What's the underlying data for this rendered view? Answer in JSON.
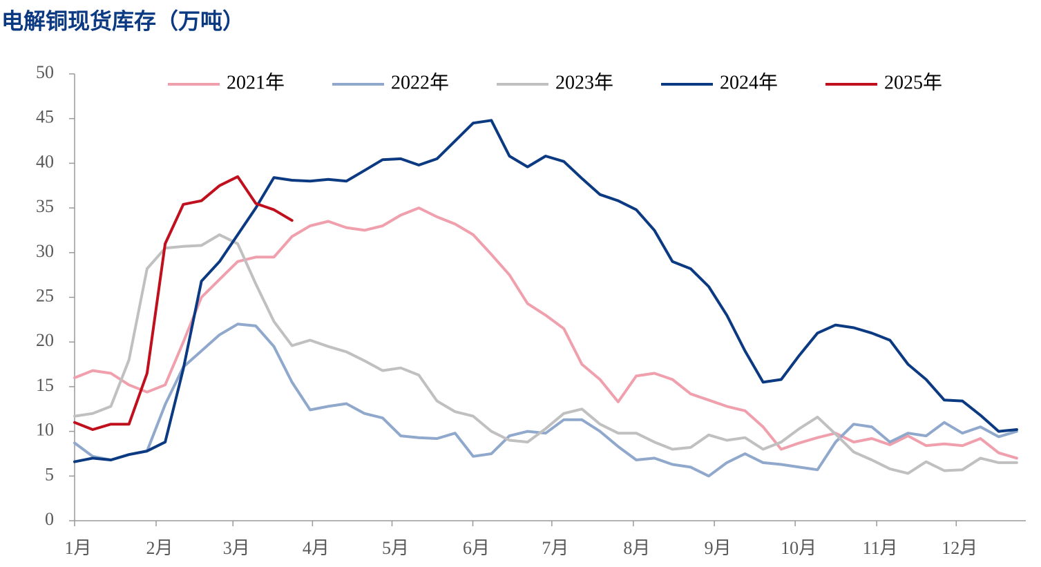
{
  "chart_data": {
    "type": "line",
    "title": "电解铜现货库存（万吨）",
    "x": [
      0,
      1,
      2,
      3,
      4,
      5,
      6,
      7,
      8,
      9,
      10,
      11,
      12,
      13,
      14,
      15,
      16,
      17,
      18,
      19,
      20,
      21,
      22,
      23,
      24,
      25,
      26,
      27,
      28,
      29,
      30,
      31,
      32,
      33,
      34,
      35,
      36,
      37,
      38,
      39,
      40,
      41,
      42,
      43,
      44,
      45,
      46,
      47,
      48,
      49,
      50,
      51,
      52
    ],
    "xlim": [
      0,
      52.5
    ],
    "xticks": [
      {
        "value": 0,
        "label": "1月"
      },
      {
        "value": 4.5,
        "label": "2月"
      },
      {
        "value": 8.74,
        "label": "3月"
      },
      {
        "value": 13.13,
        "label": "4月"
      },
      {
        "value": 17.52,
        "label": "5月"
      },
      {
        "value": 21.98,
        "label": "6月"
      },
      {
        "value": 26.34,
        "label": "7月"
      },
      {
        "value": 30.84,
        "label": "8月"
      },
      {
        "value": 35.31,
        "label": "9月"
      },
      {
        "value": 39.77,
        "label": "10月"
      },
      {
        "value": 44.27,
        "label": "11月"
      },
      {
        "value": 48.66,
        "label": "12月"
      }
    ],
    "ylim": [
      0,
      50
    ],
    "yticks": [
      0,
      5,
      10,
      15,
      20,
      25,
      30,
      35,
      40,
      45,
      50
    ],
    "legend": "top",
    "series": [
      {
        "name": "2021年",
        "color": "#f0a0ad",
        "values": [
          16,
          16.8,
          16.5,
          15.2,
          14.4,
          15.2,
          20,
          25,
          27,
          29,
          29.5,
          29.5,
          31.8,
          33,
          33.5,
          32.8,
          32.5,
          33,
          34.2,
          35,
          34,
          33.2,
          32,
          29.8,
          27.5,
          24.3,
          23,
          21.5,
          17.5,
          15.8,
          13.3,
          16.2,
          16.5,
          15.8,
          14.2,
          13.5,
          12.8,
          12.3,
          10.5,
          8,
          8.7,
          9.3,
          9.8,
          8.8,
          9.2,
          8.5,
          9.5,
          8.4,
          8.6,
          8.4,
          9.2,
          7.6,
          7
        ]
      },
      {
        "name": "2022年",
        "color": "#8fa8cc",
        "values": [
          8.7,
          7.2,
          6.8,
          7.4,
          7.8,
          13,
          17.2,
          19,
          20.8,
          22,
          21.8,
          19.5,
          15.5,
          12.4,
          12.8,
          13.1,
          12,
          11.5,
          9.5,
          9.3,
          9.2,
          9.8,
          7.2,
          7.5,
          9.5,
          10,
          9.8,
          11.3,
          11.3,
          10,
          8.3,
          6.8,
          7,
          6.3,
          6,
          5,
          6.5,
          7.5,
          6.5,
          6.3,
          6,
          5.7,
          8.8,
          10.8,
          10.5,
          8.8,
          9.8,
          9.5,
          11,
          9.8,
          10.5,
          9.4,
          10
        ]
      },
      {
        "name": "2023年",
        "color": "#c0c0c0",
        "values": [
          11.7,
          12,
          12.8,
          18,
          28.2,
          30.5,
          30.7,
          30.8,
          32,
          31,
          26.5,
          22.3,
          19.6,
          20.2,
          19.5,
          18.9,
          17.9,
          16.8,
          17.1,
          16.3,
          13.4,
          12.2,
          11.7,
          10,
          9,
          8.8,
          10.3,
          12,
          12.5,
          10.8,
          9.8,
          9.8,
          8.8,
          8,
          8.2,
          9.6,
          9,
          9.3,
          8,
          8.8,
          10.3,
          11.6,
          9.7,
          7.7,
          6.8,
          5.8,
          5.3,
          6.6,
          5.6,
          5.7,
          7,
          6.5,
          6.5
        ]
      },
      {
        "name": "2024年",
        "color": "#0b3a82",
        "values": [
          6.6,
          7,
          6.8,
          7.4,
          7.8,
          8.8,
          17,
          26.8,
          29,
          32,
          35,
          38.4,
          38.1,
          38,
          38.2,
          38,
          39.2,
          40.4,
          40.5,
          39.8,
          40.5,
          42.5,
          44.5,
          44.8,
          40.8,
          39.6,
          40.8,
          40.2,
          38.3,
          36.5,
          35.8,
          34.8,
          32.5,
          29,
          28.2,
          26.2,
          23,
          19,
          15.5,
          15.8,
          18.5,
          21,
          21.9,
          21.6,
          21,
          20.2,
          17.5,
          15.8,
          13.5,
          13.4,
          11.8,
          10,
          10.2
        ]
      },
      {
        "name": "2025年",
        "color": "#c0101e",
        "values": [
          11,
          10.2,
          10.8,
          10.8,
          16.5,
          31,
          35.4,
          35.8,
          37.5,
          38.5,
          35.5,
          34.8,
          33.6,
          null,
          null,
          null,
          null,
          null,
          null,
          null,
          null,
          null,
          null,
          null,
          null,
          null,
          null,
          null,
          null,
          null,
          null,
          null,
          null,
          null,
          null,
          null,
          null,
          null,
          null,
          null,
          null,
          null,
          null,
          null,
          null,
          null,
          null,
          null,
          null,
          null,
          null,
          null,
          null
        ]
      }
    ]
  }
}
